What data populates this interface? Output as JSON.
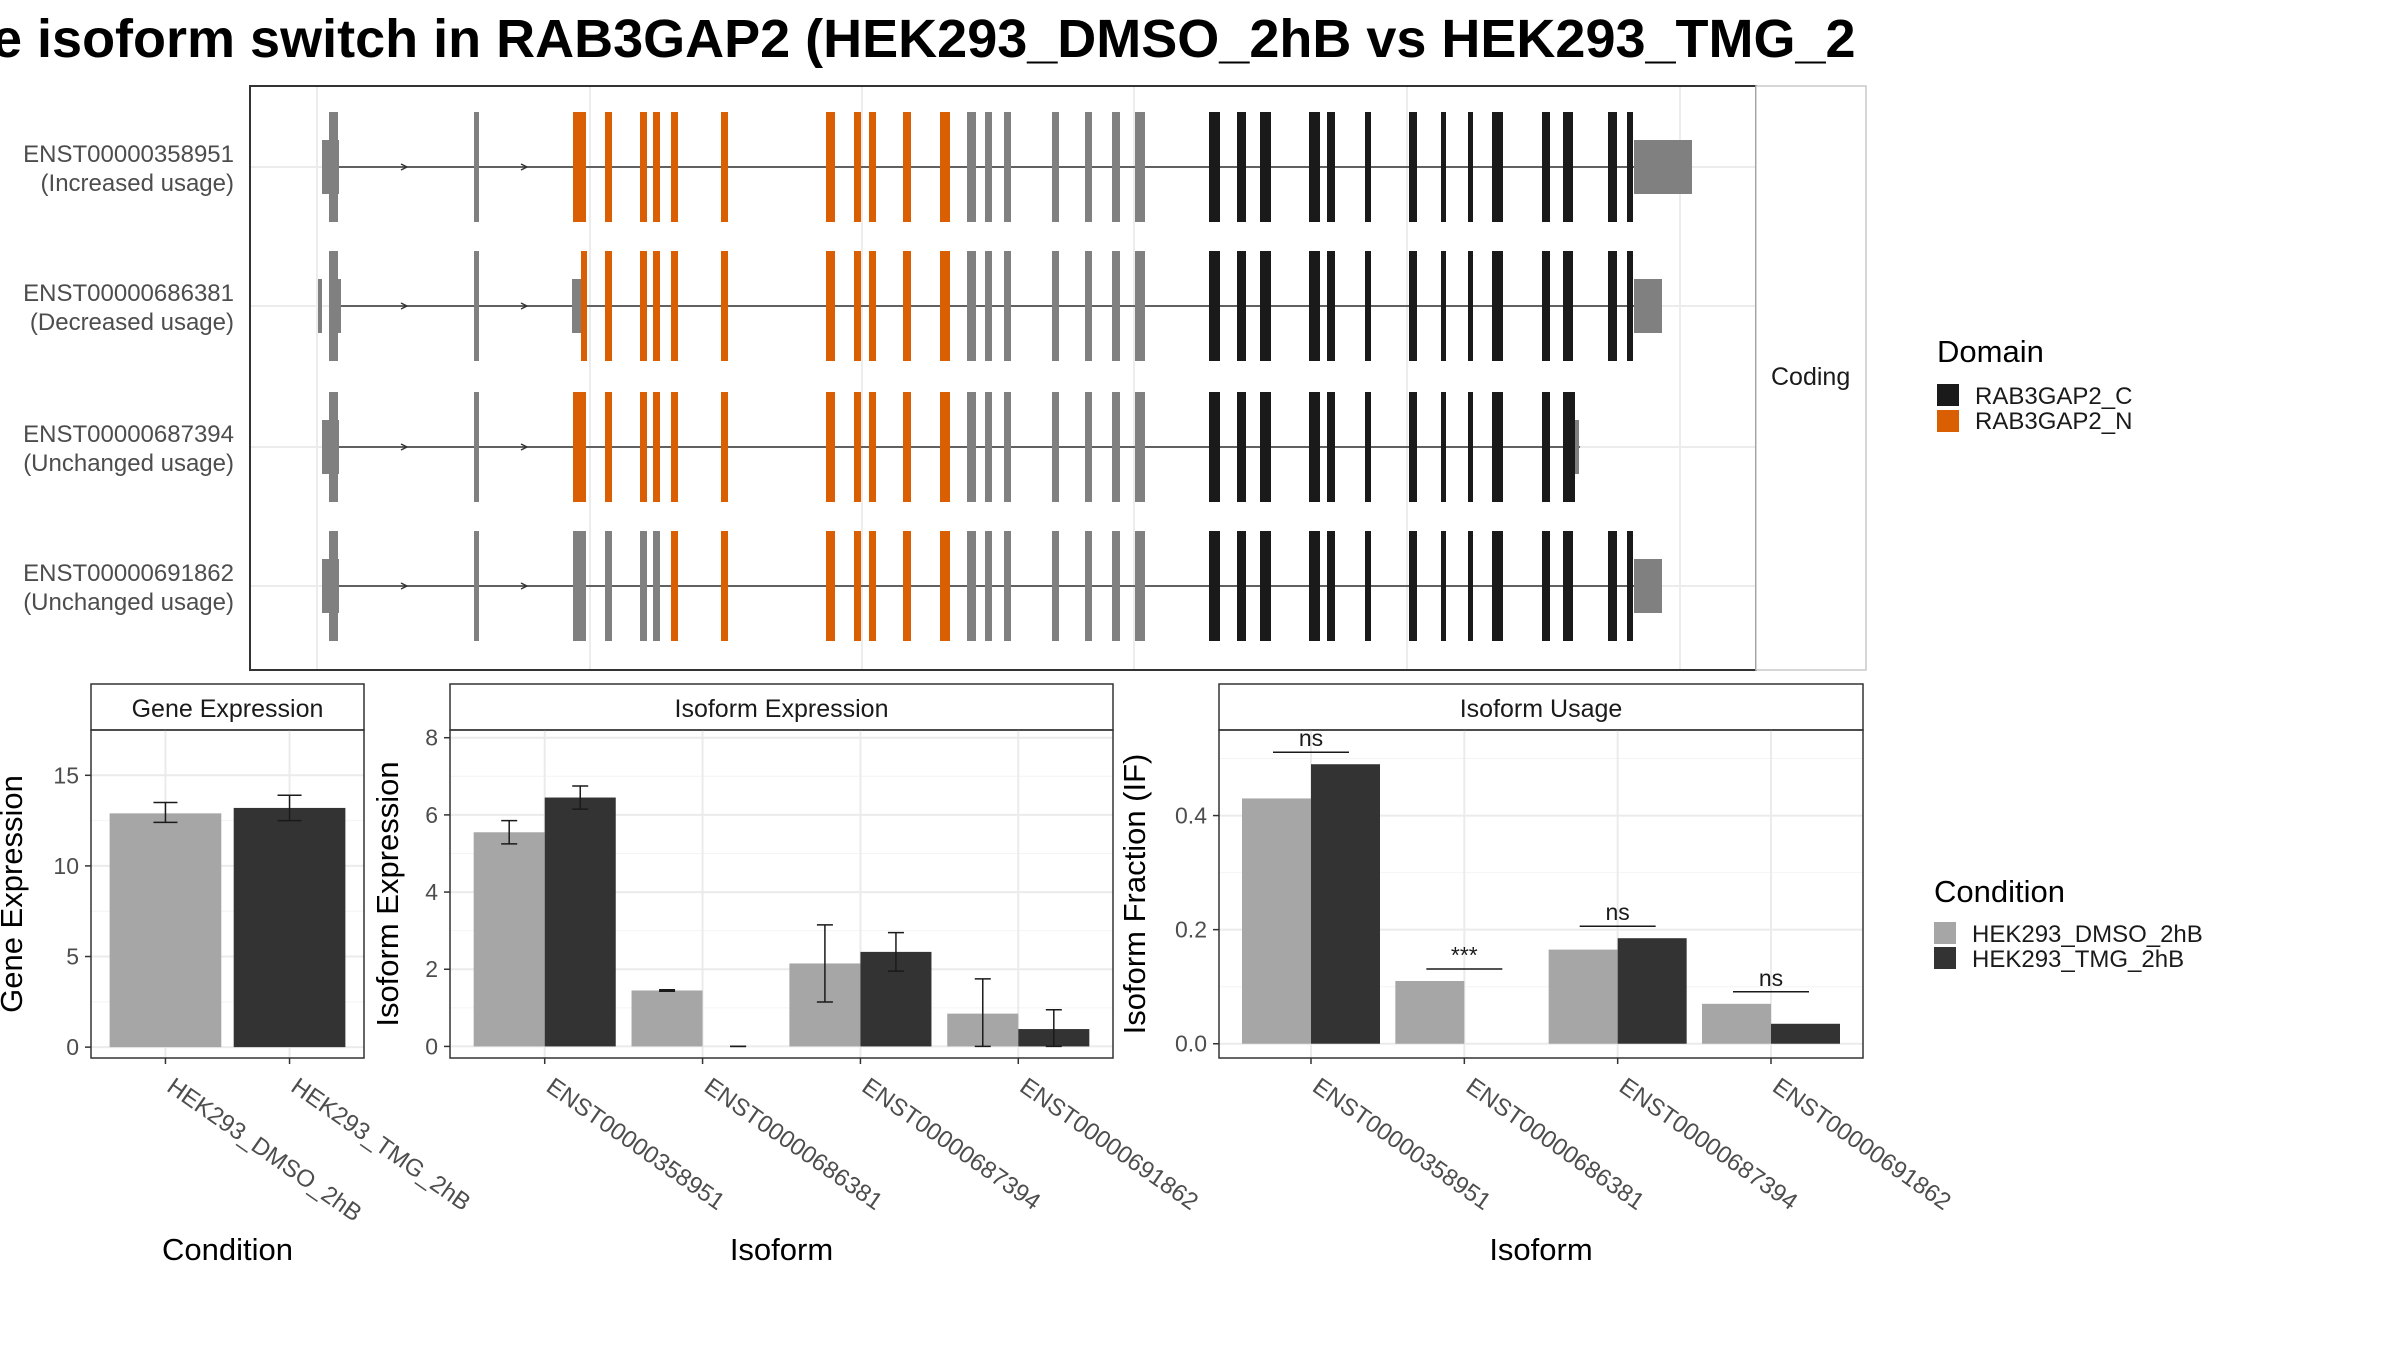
{
  "title": "e isoform switch in RAB3GAP2 (HEK293_DMSO_2hB vs HEK293_TMG_2",
  "transcripts": {
    "facet_label": "Coding",
    "rows": [
      {
        "id": "ENST00000358951",
        "usage": "(Increased usage)"
      },
      {
        "id": "ENST00000686381",
        "usage": "(Decreased usage)"
      },
      {
        "id": "ENST00000687394",
        "usage": "(Unchanged usage)"
      },
      {
        "id": "ENST00000691862",
        "usage": "(Unchanged usage)"
      }
    ]
  },
  "legends": {
    "domain": {
      "title": "Domain",
      "items": [
        {
          "label": "RAB3GAP2_C",
          "color": "#1a1a1a"
        },
        {
          "label": "RAB3GAP2_N",
          "color": "#d95f02"
        }
      ]
    },
    "condition": {
      "title": "Condition",
      "items": [
        {
          "label": "HEK293_DMSO_2hB",
          "color": "#a6a6a6"
        },
        {
          "label": "HEK293_TMG_2hB",
          "color": "#333333"
        }
      ]
    }
  },
  "chart_data": [
    {
      "type": "bar",
      "title": "Gene Expression",
      "xlabel": "Condition",
      "ylabel": "Gene Expression",
      "categories": [
        "HEK293_DMSO_2hB",
        "HEK293_TMG_2hB"
      ],
      "values": [
        12.9,
        13.2
      ],
      "errors": [
        [
          12.4,
          13.5
        ],
        [
          12.5,
          13.9
        ]
      ],
      "ylim": [
        -0.6,
        17.5
      ],
      "yticks": [
        0,
        5,
        10,
        15
      ]
    },
    {
      "type": "bar",
      "title": "Isoform Expression",
      "xlabel": "Isoform",
      "ylabel": "Isoform Expression",
      "categories": [
        "ENST00000358951",
        "ENST00000686381",
        "ENST00000687394",
        "ENST00000691862"
      ],
      "series": [
        {
          "name": "HEK293_DMSO_2hB",
          "values": [
            5.55,
            1.45,
            2.15,
            0.85
          ],
          "errors": [
            [
              5.25,
              5.85
            ],
            [
              1.43,
              1.47
            ],
            [
              1.15,
              3.15
            ],
            [
              0.0,
              1.75
            ]
          ]
        },
        {
          "name": "HEK293_TMG_2hB",
          "values": [
            6.45,
            0.0,
            2.45,
            0.45
          ],
          "errors": [
            [
              6.15,
              6.75
            ],
            [
              0.0,
              0.0
            ],
            [
              1.95,
              2.95
            ],
            [
              0.0,
              0.95
            ]
          ]
        }
      ],
      "ylim": [
        -0.3,
        8.2
      ],
      "yticks": [
        0,
        2,
        4,
        6,
        8
      ]
    },
    {
      "type": "bar",
      "title": "Isoform Usage",
      "xlabel": "Isoform",
      "ylabel": "Isoform Fraction (IF)",
      "categories": [
        "ENST00000358951",
        "ENST00000686381",
        "ENST00000687394",
        "ENST00000691862"
      ],
      "series": [
        {
          "name": "HEK293_DMSO_2hB",
          "values": [
            0.43,
            0.11,
            0.165,
            0.07
          ]
        },
        {
          "name": "HEK293_TMG_2hB",
          "values": [
            0.49,
            0.0,
            0.185,
            0.035
          ]
        }
      ],
      "significance": [
        "ns",
        "***",
        "ns",
        "ns"
      ],
      "ylim": [
        -0.025,
        0.55
      ],
      "yticks": [
        0.0,
        0.2,
        0.4
      ],
      "ytick_labels": [
        "0.0",
        "0.2",
        "0.4"
      ]
    }
  ]
}
